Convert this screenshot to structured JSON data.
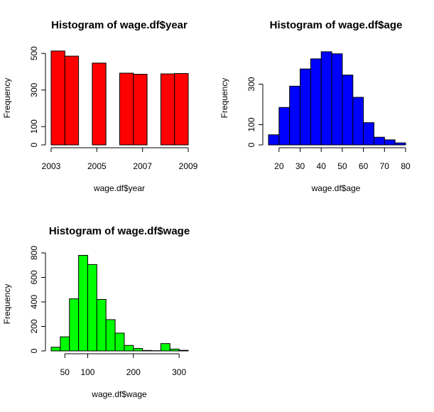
{
  "chart_data": [
    {
      "type": "bar",
      "title": "Histogram of wage.df$year",
      "xlabel": "wage.df$year",
      "ylabel": "Frequency",
      "color": "#ff0000",
      "x_ticks": [
        "2003",
        "2005",
        "2007",
        "2009"
      ],
      "x_tick_values": [
        2003,
        2005,
        2007,
        2009
      ],
      "y_ticks": [
        "0",
        "100",
        "300",
        "500"
      ],
      "y_tick_values": [
        0,
        100,
        300,
        500
      ],
      "xlim": [
        2003,
        2009
      ],
      "ylim": [
        0,
        520
      ],
      "bins": [
        {
          "x0": 2003.0,
          "x1": 2003.6,
          "count": 513
        },
        {
          "x0": 2003.6,
          "x1": 2004.2,
          "count": 485
        },
        {
          "x0": 2004.2,
          "x1": 2004.8,
          "count": 0
        },
        {
          "x0": 2004.8,
          "x1": 2005.4,
          "count": 447
        },
        {
          "x0": 2005.4,
          "x1": 2006.0,
          "count": 0
        },
        {
          "x0": 2006.0,
          "x1": 2006.6,
          "count": 392
        },
        {
          "x0": 2006.6,
          "x1": 2007.2,
          "count": 386
        },
        {
          "x0": 2007.2,
          "x1": 2007.8,
          "count": 0
        },
        {
          "x0": 2007.8,
          "x1": 2008.4,
          "count": 388
        },
        {
          "x0": 2008.4,
          "x1": 2009.0,
          "count": 390
        }
      ]
    },
    {
      "type": "bar",
      "title": "Histogram of wage.df$age",
      "xlabel": "wage.df$age",
      "ylabel": "Frequency",
      "color": "#0000ff",
      "x_ticks": [
        "20",
        "30",
        "40",
        "50",
        "60",
        "70",
        "80"
      ],
      "x_tick_values": [
        20,
        30,
        40,
        50,
        60,
        70,
        80
      ],
      "y_ticks": [
        "0",
        "100",
        "300"
      ],
      "y_tick_values": [
        0,
        100,
        300
      ],
      "xlim": [
        15,
        80
      ],
      "ylim": [
        0,
        470
      ],
      "bins": [
        {
          "x0": 15,
          "x1": 20,
          "count": 50
        },
        {
          "x0": 20,
          "x1": 25,
          "count": 185
        },
        {
          "x0": 25,
          "x1": 30,
          "count": 290
        },
        {
          "x0": 30,
          "x1": 35,
          "count": 375
        },
        {
          "x0": 35,
          "x1": 40,
          "count": 425
        },
        {
          "x0": 40,
          "x1": 45,
          "count": 460
        },
        {
          "x0": 45,
          "x1": 50,
          "count": 450
        },
        {
          "x0": 50,
          "x1": 55,
          "count": 345
        },
        {
          "x0": 55,
          "x1": 60,
          "count": 235
        },
        {
          "x0": 60,
          "x1": 65,
          "count": 110
        },
        {
          "x0": 65,
          "x1": 70,
          "count": 38
        },
        {
          "x0": 70,
          "x1": 75,
          "count": 25
        },
        {
          "x0": 75,
          "x1": 80,
          "count": 10
        }
      ]
    },
    {
      "type": "bar",
      "title": "Histogram of wage.df$wage",
      "xlabel": "wage.df$wage",
      "ylabel": "Frequency",
      "color": "#00ff00",
      "x_ticks": [
        "50",
        "100",
        "200",
        "300"
      ],
      "x_tick_values": [
        50,
        100,
        200,
        300
      ],
      "y_ticks": [
        "0",
        "200",
        "400",
        "600",
        "800"
      ],
      "y_tick_values": [
        0,
        200,
        400,
        600,
        800
      ],
      "xlim": [
        20,
        320
      ],
      "ylim": [
        0,
        800
      ],
      "bins": [
        {
          "x0": 20,
          "x1": 40,
          "count": 30
        },
        {
          "x0": 40,
          "x1": 60,
          "count": 115
        },
        {
          "x0": 60,
          "x1": 80,
          "count": 425
        },
        {
          "x0": 80,
          "x1": 100,
          "count": 780
        },
        {
          "x0": 100,
          "x1": 120,
          "count": 705
        },
        {
          "x0": 120,
          "x1": 140,
          "count": 420
        },
        {
          "x0": 140,
          "x1": 160,
          "count": 255
        },
        {
          "x0": 160,
          "x1": 180,
          "count": 145
        },
        {
          "x0": 180,
          "x1": 200,
          "count": 45
        },
        {
          "x0": 200,
          "x1": 220,
          "count": 20
        },
        {
          "x0": 220,
          "x1": 240,
          "count": 4
        },
        {
          "x0": 240,
          "x1": 260,
          "count": 2
        },
        {
          "x0": 260,
          "x1": 280,
          "count": 60
        },
        {
          "x0": 280,
          "x1": 300,
          "count": 15
        },
        {
          "x0": 300,
          "x1": 320,
          "count": 5
        }
      ]
    }
  ]
}
